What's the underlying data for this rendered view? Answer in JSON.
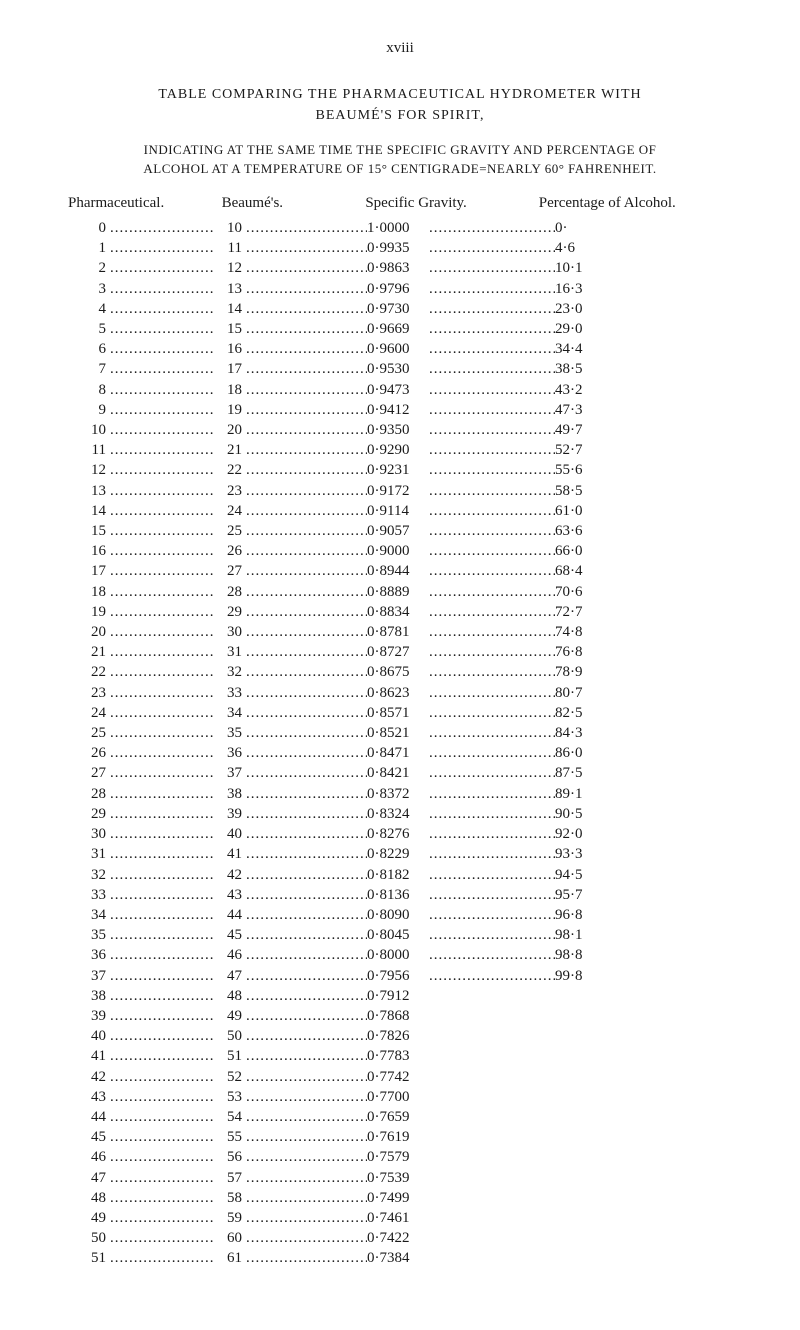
{
  "pageNumber": "xviii",
  "title": {
    "line1": "TABLE COMPARING THE PHARMACEUTICAL HYDROMETER WITH",
    "line2": "BEAUMÉ'S FOR SPIRIT,"
  },
  "subtitle": {
    "line1": "INDICATING AT THE SAME TIME THE SPECIFIC GRAVITY AND PERCENTAGE OF",
    "line2": "ALCOHOL AT A TEMPERATURE OF 15° CENTIGRADE=NEARLY 60° FAHRENHEIT."
  },
  "headers": {
    "col1": "Pharmaceutical.",
    "col2": "Beaumé's.",
    "col3": "Specific Gravity.",
    "col4": "Percentage of Alcohol."
  },
  "dots": "..................................",
  "rows": [
    {
      "pharm": "0",
      "beaume": "10",
      "gravity": "1·0000",
      "alcohol": "0·"
    },
    {
      "pharm": "1",
      "beaume": "11",
      "gravity": "0·9935",
      "alcohol": "4·6"
    },
    {
      "pharm": "2",
      "beaume": "12",
      "gravity": "0·9863",
      "alcohol": "10·1"
    },
    {
      "pharm": "3",
      "beaume": "13",
      "gravity": "0·9796",
      "alcohol": "16·3"
    },
    {
      "pharm": "4",
      "beaume": "14",
      "gravity": "0·9730",
      "alcohol": "23·0"
    },
    {
      "pharm": "5",
      "beaume": "15",
      "gravity": "0·9669",
      "alcohol": "29·0"
    },
    {
      "pharm": "6",
      "beaume": "16",
      "gravity": "0·9600",
      "alcohol": "34·4"
    },
    {
      "pharm": "7",
      "beaume": "17",
      "gravity": "0·9530",
      "alcohol": "38·5"
    },
    {
      "pharm": "8",
      "beaume": "18",
      "gravity": "0·9473",
      "alcohol": "43·2"
    },
    {
      "pharm": "9",
      "beaume": "19",
      "gravity": "0·9412",
      "alcohol": "47·3"
    },
    {
      "pharm": "10",
      "beaume": "20",
      "gravity": "0·9350",
      "alcohol": "49·7"
    },
    {
      "pharm": "11",
      "beaume": "21",
      "gravity": "0·9290",
      "alcohol": "52·7"
    },
    {
      "pharm": "12",
      "beaume": "22",
      "gravity": "0·9231",
      "alcohol": "55·6"
    },
    {
      "pharm": "13",
      "beaume": "23",
      "gravity": "0·9172",
      "alcohol": "58·5"
    },
    {
      "pharm": "14",
      "beaume": "24",
      "gravity": "0·9114",
      "alcohol": "61·0"
    },
    {
      "pharm": "15",
      "beaume": "25",
      "gravity": "0·9057",
      "alcohol": "63·6"
    },
    {
      "pharm": "16",
      "beaume": "26",
      "gravity": "0·9000",
      "alcohol": "66·0"
    },
    {
      "pharm": "17",
      "beaume": "27",
      "gravity": "0·8944",
      "alcohol": "68·4"
    },
    {
      "pharm": "18",
      "beaume": "28",
      "gravity": "0·8889",
      "alcohol": "70·6"
    },
    {
      "pharm": "19",
      "beaume": "29",
      "gravity": "0·8834",
      "alcohol": "72·7"
    },
    {
      "pharm": "20",
      "beaume": "30",
      "gravity": "0·8781",
      "alcohol": "74·8"
    },
    {
      "pharm": "21",
      "beaume": "31",
      "gravity": "0·8727",
      "alcohol": "76·8"
    },
    {
      "pharm": "22",
      "beaume": "32",
      "gravity": "0·8675",
      "alcohol": "78·9"
    },
    {
      "pharm": "23",
      "beaume": "33",
      "gravity": "0·8623",
      "alcohol": "80·7"
    },
    {
      "pharm": "24",
      "beaume": "34",
      "gravity": "0·8571",
      "alcohol": "82·5"
    },
    {
      "pharm": "25",
      "beaume": "35",
      "gravity": "0·8521",
      "alcohol": "84·3"
    },
    {
      "pharm": "26",
      "beaume": "36",
      "gravity": "0·8471",
      "alcohol": "86·0"
    },
    {
      "pharm": "27",
      "beaume": "37",
      "gravity": "0·8421",
      "alcohol": "87·5"
    },
    {
      "pharm": "28",
      "beaume": "38",
      "gravity": "0·8372",
      "alcohol": "89·1"
    },
    {
      "pharm": "29",
      "beaume": "39",
      "gravity": "0·8324",
      "alcohol": "90·5"
    },
    {
      "pharm": "30",
      "beaume": "40",
      "gravity": "0·8276",
      "alcohol": "92·0"
    },
    {
      "pharm": "31",
      "beaume": "41",
      "gravity": "0·8229",
      "alcohol": "93·3"
    },
    {
      "pharm": "32",
      "beaume": "42",
      "gravity": "0·8182",
      "alcohol": "94·5"
    },
    {
      "pharm": "33",
      "beaume": "43",
      "gravity": "0·8136",
      "alcohol": "95·7"
    },
    {
      "pharm": "34",
      "beaume": "44",
      "gravity": "0·8090",
      "alcohol": "96·8"
    },
    {
      "pharm": "35",
      "beaume": "45",
      "gravity": "0·8045",
      "alcohol": "98·1"
    },
    {
      "pharm": "36",
      "beaume": "46",
      "gravity": "0·8000",
      "alcohol": "98·8"
    },
    {
      "pharm": "37",
      "beaume": "47",
      "gravity": "0·7956",
      "alcohol": "99·8"
    },
    {
      "pharm": "38",
      "beaume": "48",
      "gravity": "0·7912",
      "alcohol": ""
    },
    {
      "pharm": "39",
      "beaume": "49",
      "gravity": "0·7868",
      "alcohol": ""
    },
    {
      "pharm": "40",
      "beaume": "50",
      "gravity": "0·7826",
      "alcohol": ""
    },
    {
      "pharm": "41",
      "beaume": "51",
      "gravity": "0·7783",
      "alcohol": ""
    },
    {
      "pharm": "42",
      "beaume": "52",
      "gravity": "0·7742",
      "alcohol": ""
    },
    {
      "pharm": "43",
      "beaume": "53",
      "gravity": "0·7700",
      "alcohol": ""
    },
    {
      "pharm": "44",
      "beaume": "54",
      "gravity": "0·7659",
      "alcohol": ""
    },
    {
      "pharm": "45",
      "beaume": "55",
      "gravity": "0·7619",
      "alcohol": ""
    },
    {
      "pharm": "46",
      "beaume": "56",
      "gravity": "0·7579",
      "alcohol": ""
    },
    {
      "pharm": "47",
      "beaume": "57",
      "gravity": "0·7539",
      "alcohol": ""
    },
    {
      "pharm": "48",
      "beaume": "58",
      "gravity": "0·7499",
      "alcohol": ""
    },
    {
      "pharm": "49",
      "beaume": "59",
      "gravity": "0·7461",
      "alcohol": ""
    },
    {
      "pharm": "50",
      "beaume": "60",
      "gravity": "0·7422",
      "alcohol": ""
    },
    {
      "pharm": "51",
      "beaume": "61",
      "gravity": "0·7384",
      "alcohol": ""
    }
  ]
}
